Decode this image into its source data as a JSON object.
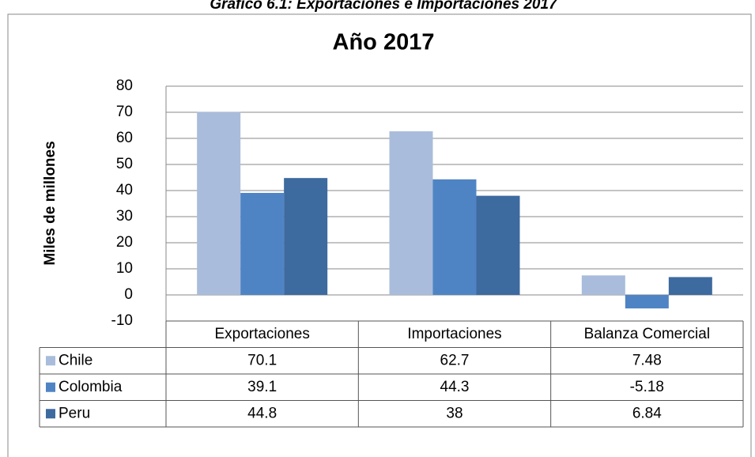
{
  "caption": "Gráfico 6.1: Exportaciones e Importaciones 2017",
  "chart_data": {
    "type": "bar",
    "title": "Año 2017",
    "y_label": "Miles de millones",
    "categories": [
      "Exportaciones",
      "Importaciones",
      "Balanza Comercial"
    ],
    "series": [
      {
        "name": "Chile",
        "color": "#a9bcdb",
        "values": [
          70.1,
          62.7,
          7.48
        ]
      },
      {
        "name": "Colombia",
        "color": "#4f84c4",
        "values": [
          39.1,
          44.3,
          -5.18
        ]
      },
      {
        "name": "Peru",
        "color": "#3d6a9f",
        "values": [
          44.8,
          38,
          6.84
        ]
      }
    ],
    "ylim": [
      -10,
      80
    ],
    "yticks": [
      -10,
      0,
      10,
      20,
      30,
      40,
      50,
      60,
      70,
      80
    ],
    "grid": true,
    "data_table": true
  }
}
